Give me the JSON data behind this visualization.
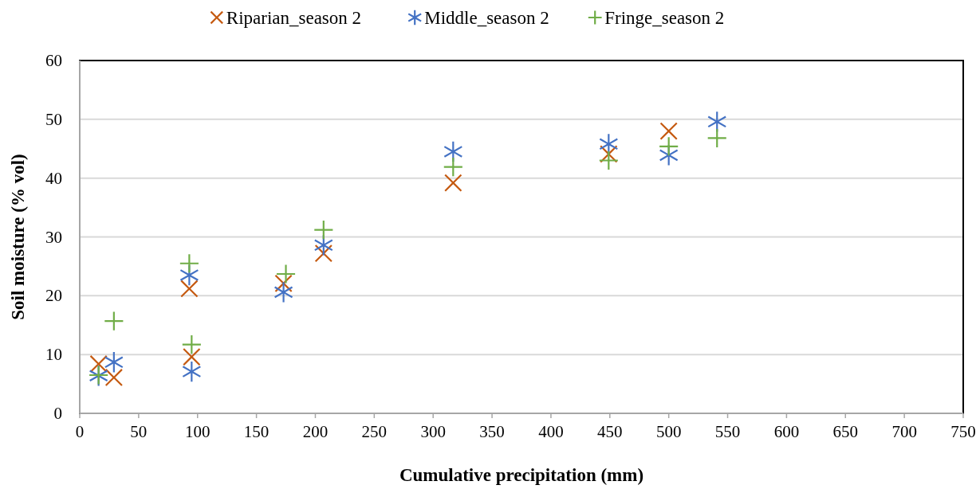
{
  "chart_data": {
    "type": "scatter",
    "xlabel": "Cumulative precipitation (mm)",
    "ylabel": "Soil moisture (% vol)",
    "xlim": [
      0,
      750
    ],
    "xticks": [
      0,
      50,
      100,
      150,
      200,
      250,
      300,
      350,
      400,
      450,
      500,
      550,
      600,
      650,
      700,
      750
    ],
    "ylim": [
      0,
      60
    ],
    "yticks": [
      0,
      10,
      20,
      30,
      40,
      50,
      60
    ],
    "grid": "y",
    "legend": "top",
    "series": [
      {
        "name": "Riparian_season 2",
        "color": "#c55a11",
        "marker": "cross",
        "x": [
          16,
          29,
          93,
          95,
          173,
          207,
          317,
          449,
          500
        ],
        "values": [
          8.4,
          6.1,
          21.2,
          9.6,
          22.1,
          27.2,
          39.2,
          44.1,
          48.0
        ]
      },
      {
        "name": "Middle_season 2",
        "color": "#4472c4",
        "marker": "star",
        "x": [
          16,
          29,
          93,
          95,
          173,
          207,
          317,
          449,
          500,
          541
        ],
        "values": [
          6.4,
          8.7,
          23.5,
          7.1,
          20.6,
          28.6,
          44.5,
          45.8,
          43.9,
          49.6
        ]
      },
      {
        "name": "Fringe_season 2",
        "color": "#70ad47",
        "marker": "plus",
        "x": [
          16,
          29,
          93,
          95,
          175,
          207,
          317,
          449,
          500,
          541
        ],
        "values": [
          6.5,
          15.7,
          25.5,
          11.7,
          23.7,
          31.2,
          41.9,
          43.0,
          45.4,
          46.8
        ]
      }
    ]
  }
}
